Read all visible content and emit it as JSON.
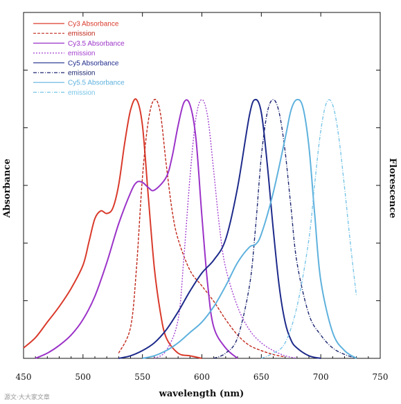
{
  "chart_data": {
    "type": "line",
    "xlabel": "wavelength (nm)",
    "ylabel_left": "Absorbance",
    "ylabel_right": "Florescence",
    "xlim": [
      450,
      750
    ],
    "ylim": [
      0,
      1
    ],
    "xticks": [
      450,
      500,
      550,
      600,
      650,
      700,
      750
    ],
    "grid": false,
    "legend_position": "top-left",
    "series": [
      {
        "name": "Cy3 Absorbance",
        "color": "#d93a2b",
        "dash": "solid",
        "x": [
          450,
          460,
          470,
          480,
          490,
          500,
          505,
          510,
          515,
          520,
          525,
          530,
          535,
          540,
          545,
          550,
          555,
          560,
          565,
          570,
          580,
          590,
          600
        ],
        "y": [
          0.04,
          0.08,
          0.14,
          0.2,
          0.27,
          0.36,
          0.45,
          0.54,
          0.57,
          0.56,
          0.58,
          0.67,
          0.83,
          0.96,
          1.0,
          0.9,
          0.62,
          0.35,
          0.18,
          0.08,
          0.02,
          0.01,
          0.0
        ]
      },
      {
        "name": "emission",
        "color": "#c0281b",
        "dash": "dash",
        "x": [
          530,
          540,
          545,
          550,
          555,
          560,
          565,
          570,
          575,
          580,
          590,
          600,
          610,
          620,
          630,
          640,
          650,
          660,
          670
        ],
        "y": [
          0.02,
          0.12,
          0.35,
          0.7,
          0.92,
          1.0,
          0.95,
          0.75,
          0.57,
          0.46,
          0.34,
          0.28,
          0.22,
          0.15,
          0.09,
          0.05,
          0.03,
          0.015,
          0.005
        ]
      },
      {
        "name": "Cy3.5 Absorbance",
        "color": "#9b32c8",
        "dash": "solid",
        "x": [
          460,
          470,
          480,
          490,
          500,
          510,
          520,
          530,
          540,
          545,
          550,
          555,
          560,
          570,
          575,
          580,
          585,
          590,
          595,
          600,
          605,
          610,
          620,
          630
        ],
        "y": [
          0.0,
          0.02,
          0.05,
          0.09,
          0.15,
          0.24,
          0.37,
          0.52,
          0.64,
          0.68,
          0.68,
          0.66,
          0.65,
          0.7,
          0.78,
          0.9,
          0.99,
          0.98,
          0.85,
          0.55,
          0.28,
          0.12,
          0.04,
          0.0
        ]
      },
      {
        "name": "emission",
        "color": "#a341d0",
        "dash": "dot",
        "x": [
          560,
          570,
          580,
          585,
          590,
          595,
          600,
          605,
          610,
          615,
          620,
          630,
          640,
          650,
          660,
          670,
          680
        ],
        "y": [
          0.0,
          0.03,
          0.15,
          0.4,
          0.7,
          0.93,
          1.0,
          0.93,
          0.72,
          0.5,
          0.35,
          0.2,
          0.11,
          0.06,
          0.03,
          0.01,
          0.0
        ]
      },
      {
        "name": "Cy5 Absorbance",
        "color": "#1d2a8a",
        "dash": "solid",
        "x": [
          530,
          540,
          550,
          560,
          570,
          580,
          590,
          600,
          610,
          620,
          630,
          640,
          645,
          650,
          655,
          660,
          665,
          670,
          675,
          680,
          690,
          700
        ],
        "y": [
          0.0,
          0.01,
          0.03,
          0.06,
          0.11,
          0.18,
          0.26,
          0.33,
          0.38,
          0.46,
          0.66,
          0.94,
          1.0,
          0.95,
          0.75,
          0.5,
          0.28,
          0.14,
          0.07,
          0.04,
          0.01,
          0.0
        ]
      },
      {
        "name": "emission",
        "color": "#1a246e",
        "dash": "dashdot",
        "x": [
          610,
          620,
          630,
          640,
          645,
          650,
          655,
          660,
          665,
          670,
          675,
          680,
          690,
          700,
          710,
          720,
          730
        ],
        "y": [
          0.0,
          0.02,
          0.08,
          0.28,
          0.5,
          0.78,
          0.95,
          1.0,
          0.95,
          0.8,
          0.58,
          0.37,
          0.17,
          0.09,
          0.04,
          0.015,
          0.0
        ]
      },
      {
        "name": "Cy5.5 Absorbance",
        "color": "#5eb1dd",
        "dash": "solid",
        "x": [
          550,
          560,
          570,
          580,
          590,
          600,
          610,
          620,
          630,
          640,
          645,
          650,
          660,
          670,
          675,
          680,
          685,
          690,
          695,
          700,
          710,
          720,
          730
        ],
        "y": [
          0.0,
          0.01,
          0.03,
          0.06,
          0.1,
          0.14,
          0.2,
          0.28,
          0.37,
          0.43,
          0.44,
          0.48,
          0.64,
          0.85,
          0.96,
          1.0,
          0.97,
          0.82,
          0.55,
          0.3,
          0.1,
          0.03,
          0.0
        ]
      },
      {
        "name": "emission",
        "color": "#79c5e8",
        "dash": "dashdot",
        "x": [
          650,
          660,
          670,
          680,
          690,
          695,
          700,
          705,
          710,
          715,
          720,
          725,
          730
        ],
        "y": [
          0.0,
          0.02,
          0.06,
          0.2,
          0.46,
          0.68,
          0.88,
          0.99,
          0.98,
          0.86,
          0.66,
          0.44,
          0.24
        ]
      }
    ]
  },
  "watermark": "源文·大大家文章"
}
